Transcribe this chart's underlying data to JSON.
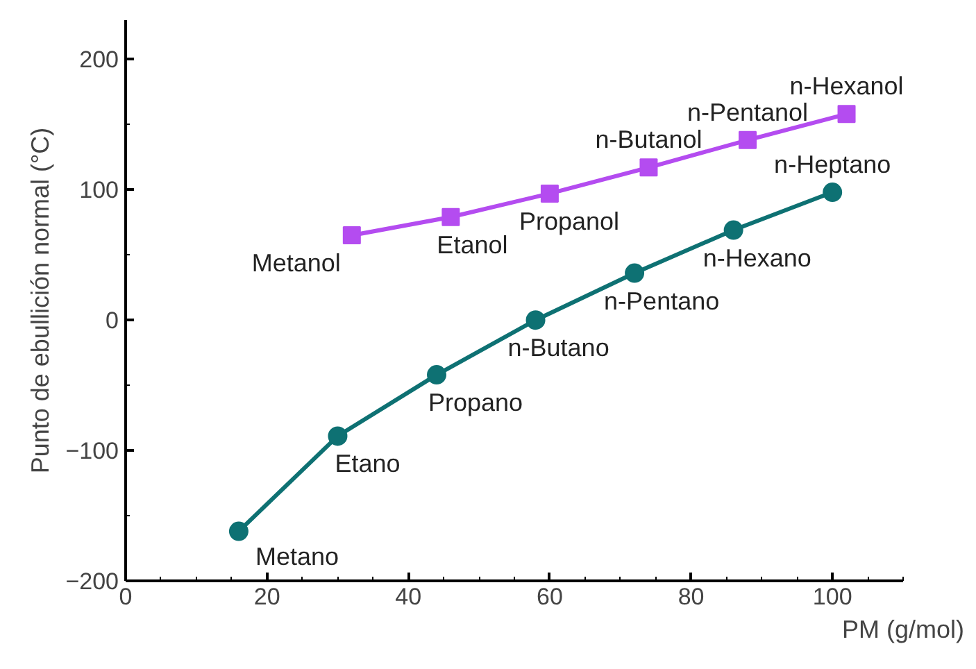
{
  "chart_data": {
    "type": "line",
    "xlabel": "PM (g/mol)",
    "ylabel": "Punto de ebullición normal (°C)",
    "xlim": [
      0,
      110
    ],
    "ylim": [
      -200,
      230
    ],
    "xticks": [
      0,
      20,
      40,
      60,
      80,
      100
    ],
    "yticks": [
      -200,
      -100,
      0,
      100,
      200
    ],
    "grid": false,
    "line_style": "solid",
    "series": [
      {
        "color": "#0e7173",
        "marker": "circle",
        "x": [
          16,
          30,
          44,
          58,
          72,
          86,
          100
        ],
        "values": [
          -162,
          -89,
          -42,
          0,
          36,
          69,
          98
        ]
      },
      {
        "color": "#b44cf0",
        "marker": "square",
        "x": [
          32,
          46,
          60,
          74,
          88,
          102
        ],
        "values": [
          65,
          79,
          97,
          117,
          138,
          158
        ]
      }
    ],
    "annotations": [
      {
        "text": "Metano",
        "x": 16,
        "y": -162
      },
      {
        "text": "Etano",
        "x": 30,
        "y": -89
      },
      {
        "text": "Propano",
        "x": 44,
        "y": -42
      },
      {
        "text": "n-Butano",
        "x": 58,
        "y": 0
      },
      {
        "text": "n-Pentano",
        "x": 72,
        "y": 36
      },
      {
        "text": "n-Hexano",
        "x": 86,
        "y": 69
      },
      {
        "text": "n-Heptano",
        "x": 100,
        "y": 98
      },
      {
        "text": "Metanol",
        "x": 32,
        "y": 65
      },
      {
        "text": "Etanol",
        "x": 46,
        "y": 79
      },
      {
        "text": "Propanol",
        "x": 60,
        "y": 97
      },
      {
        "text": "n-Butanol",
        "x": 74,
        "y": 117
      },
      {
        "text": "n-Pentanol",
        "x": 88,
        "y": 138
      },
      {
        "text": "n-Hexanol",
        "x": 102,
        "y": 158
      }
    ]
  }
}
